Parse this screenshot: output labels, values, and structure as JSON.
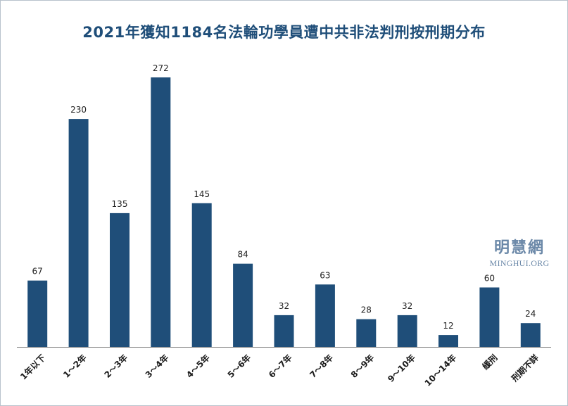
{
  "colors": {
    "bar": "#1f4e79",
    "title": "#1f4e79",
    "axis": "#7f7f7f",
    "watermark": "#6b88a8"
  },
  "watermark": {
    "cn": "明慧網",
    "en": "MINGHUI.ORG"
  },
  "chart_data": {
    "type": "bar",
    "title": "2021年獲知1184名法輪功學員遭中共非法判刑按刑期分布",
    "xlabel": "",
    "ylabel": "",
    "categories": [
      "1年以下",
      "1～2年",
      "2～3年",
      "3～4年",
      "4～5年",
      "5～6年",
      "6～7年",
      "7～8年",
      "8～9年",
      "9～10年",
      "10～14年",
      "緩刑",
      "刑期不詳"
    ],
    "values": [
      67,
      230,
      135,
      272,
      145,
      84,
      32,
      63,
      28,
      32,
      12,
      60,
      24
    ],
    "ylim": [
      0,
      272
    ],
    "grid": false,
    "legend": "none",
    "data_labels": true
  }
}
